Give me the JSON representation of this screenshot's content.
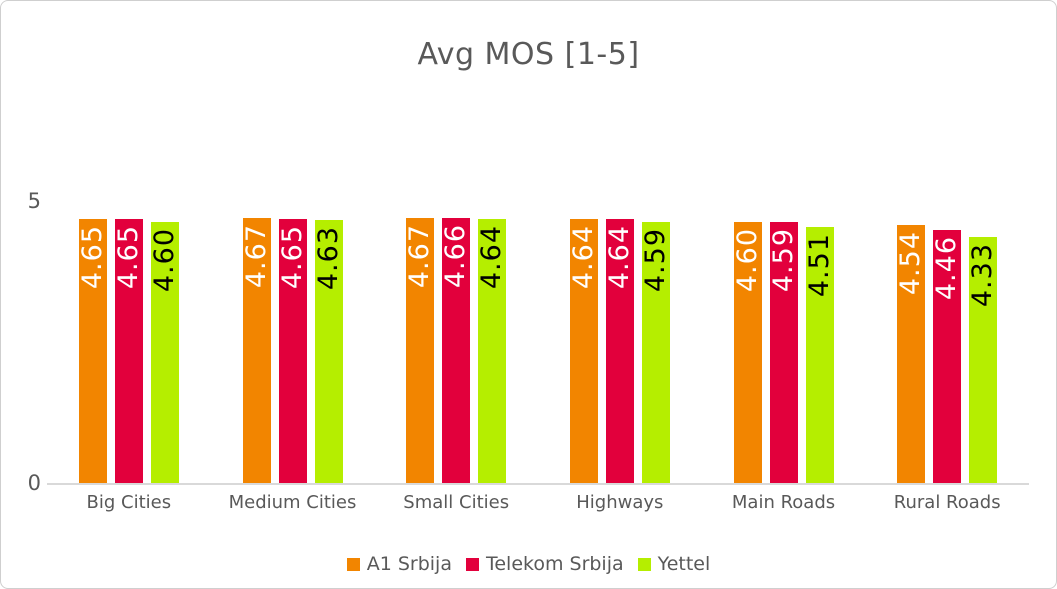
{
  "chart": {
    "title_color": "#595959",
    "axis_line_color": "#d9d9d9",
    "text_color": "#595959",
    "background": "#ffffff",
    "ytick_labels": [
      "5",
      "0"
    ]
  },
  "chart_data": {
    "type": "bar",
    "title": "Avg MOS [1-5]",
    "categories": [
      "Big Cities",
      "Medium Cities",
      "Small Cities",
      "Highways",
      "Main Roads",
      "Rural Roads"
    ],
    "series": [
      {
        "name": "A1 Srbija",
        "color": "#F28500",
        "label_text_color": "#ffffff",
        "values": [
          4.65,
          4.67,
          4.67,
          4.64,
          4.6,
          4.54
        ]
      },
      {
        "name": "Telekom Srbija",
        "color": "#E2003C",
        "label_text_color": "#ffffff",
        "values": [
          4.65,
          4.65,
          4.66,
          4.64,
          4.59,
          4.46
        ]
      },
      {
        "name": "Yettel",
        "color": "#B5EE00",
        "label_text_color": "#000000",
        "values": [
          4.6,
          4.63,
          4.64,
          4.59,
          4.51,
          4.33
        ]
      }
    ],
    "xlabel": "",
    "ylabel": "",
    "ylim": [
      0,
      5
    ],
    "yticks": [
      0,
      5
    ],
    "grid": false,
    "legend_position": "bottom",
    "data_labels": {
      "visible": true,
      "rotation": -90,
      "decimals": 2
    }
  }
}
